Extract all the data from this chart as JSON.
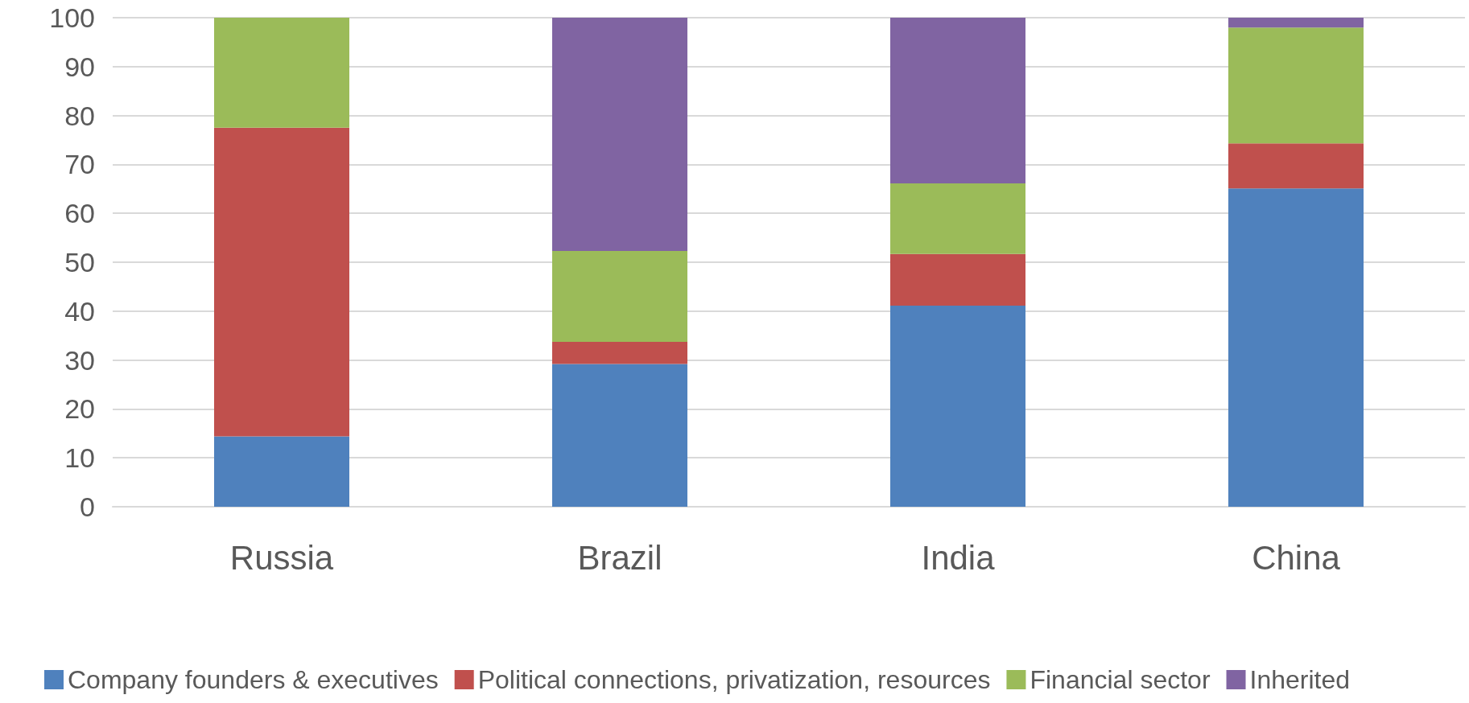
{
  "chart_data": {
    "type": "bar",
    "stacked": true,
    "categories": [
      "Russia",
      "Brazil",
      "India",
      "China"
    ],
    "series": [
      {
        "name": "Company founders & executives",
        "color": "#4f81bd",
        "values": [
          14.4,
          29.2,
          41.1,
          65.1
        ]
      },
      {
        "name": "Political connections, privatization, resources",
        "color": "#c0504d",
        "values": [
          63.1,
          4.5,
          10.6,
          9.2
        ]
      },
      {
        "name": "Financial sector",
        "color": "#9bbb59",
        "values": [
          22.5,
          18.6,
          14.4,
          23.7
        ]
      },
      {
        "name": "Inherited",
        "color": "#8064a2",
        "values": [
          0,
          47.7,
          33.9,
          2.0
        ]
      }
    ],
    "ylim": [
      0,
      100
    ],
    "yticks": [
      0,
      10,
      20,
      30,
      40,
      50,
      60,
      70,
      80,
      90,
      100
    ],
    "grid": "y",
    "legend": "bottom"
  }
}
